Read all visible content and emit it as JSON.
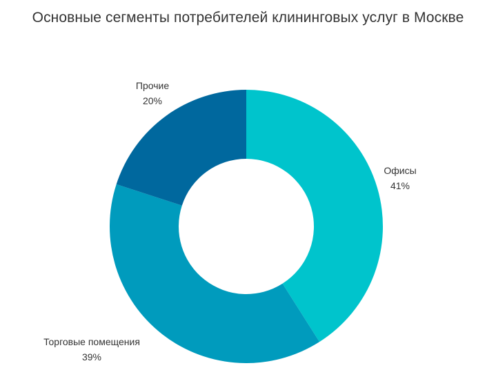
{
  "chart_data": {
    "type": "pie",
    "title": "Основные сегменты потребителей клининговых услуг в Москве",
    "donut": true,
    "slices": [
      {
        "label": "Офисы",
        "value": 41,
        "value_label": "41%",
        "color": "#00c4cc"
      },
      {
        "label": "Торговые помещения",
        "value": 39,
        "value_label": "39%",
        "color": "#009bbd"
      },
      {
        "label": "Прочие",
        "value": 20,
        "value_label": "20%",
        "color": "#00689e"
      }
    ]
  }
}
